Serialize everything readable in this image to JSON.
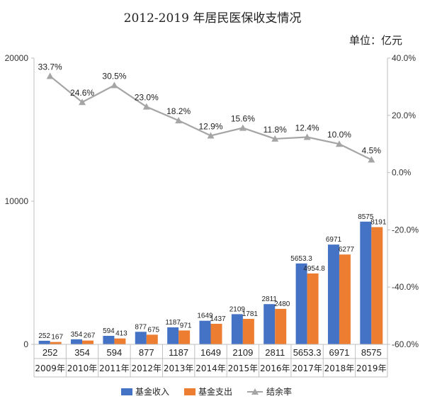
{
  "chart_data": {
    "type": "bar",
    "title": "2012-2019 年居民医保收支情况",
    "unit_label": "单位：亿元",
    "categories": [
      "2009年",
      "2010年",
      "2011年",
      "2012年",
      "2013年",
      "2014年",
      "2015年",
      "2016年",
      "2017年",
      "2018年",
      "2019年"
    ],
    "table_row": [
      "252",
      "354",
      "594",
      "877",
      "1187",
      "1649",
      "2109",
      "2811",
      "5653.3",
      "6971",
      "8575"
    ],
    "series": [
      {
        "name": "基金收入",
        "axis": "left",
        "color": "#4472C4",
        "values": [
          252,
          354,
          594,
          877,
          1187,
          1649,
          2109,
          2811,
          5653.3,
          6971,
          8575
        ],
        "labels": [
          "252",
          "354",
          "594",
          "877",
          "1187",
          "1649",
          "2109",
          "2811",
          "5653.3",
          "6971",
          "8575"
        ]
      },
      {
        "name": "基金支出",
        "axis": "left",
        "color": "#ED7D31",
        "values": [
          167,
          267,
          413,
          675,
          971,
          1437,
          1781,
          2480,
          4954.8,
          6277,
          8191
        ],
        "labels": [
          "167",
          "267",
          "413",
          "675",
          "971",
          "1437",
          "1781",
          "2480",
          "4954.8",
          "6277",
          "8191"
        ]
      },
      {
        "name": "结余率",
        "type": "line",
        "axis": "right",
        "color": "#A5A5A5",
        "values": [
          33.7,
          24.6,
          30.5,
          23.0,
          18.2,
          12.9,
          15.6,
          11.8,
          12.4,
          10.0,
          4.5
        ],
        "labels": [
          "33.7%",
          "24.6%",
          "30.5%",
          "23.0%",
          "18.2%",
          "12.9%",
          "15.6%",
          "11.8%",
          "12.4%",
          "10.0%",
          "4.5%"
        ]
      }
    ],
    "left_axis": {
      "ylim": [
        0,
        20000
      ],
      "ticks": [
        0,
        10000,
        20000
      ],
      "tick_labels": [
        "0",
        "10000",
        "20000"
      ]
    },
    "right_axis": {
      "ylim": [
        -60,
        40
      ],
      "ticks": [
        -60,
        -40,
        -20,
        0,
        20,
        40
      ],
      "tick_labels": [
        "-60.0%",
        "-40.0%",
        "-20.0%",
        "0.0%",
        "20.0%",
        "40.0%"
      ]
    },
    "grid": false,
    "legend_position": "bottom"
  }
}
